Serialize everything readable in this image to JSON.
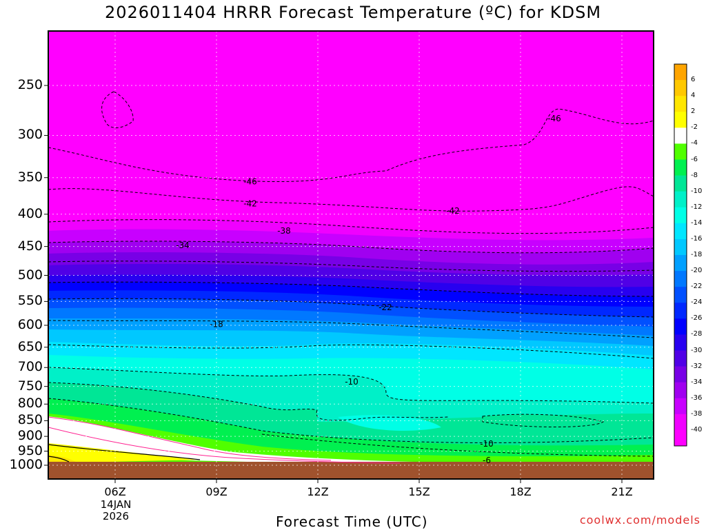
{
  "title": "2026011404 HRRR Forecast Temperature (ºC) for KDSM",
  "credit": "coolwx.com/models",
  "chart_data": {
    "type": "heatmap",
    "title": "2026011404 HRRR Forecast Temperature (ºC) for KDSM",
    "xlabel": "Forecast Time (UTC)",
    "ylabel": "",
    "x_ticks": [
      "06Z",
      "09Z",
      "12Z",
      "15Z",
      "18Z",
      "21Z"
    ],
    "x_date_labels": [
      "14JAN",
      "2026"
    ],
    "y_ticks": [
      "250",
      "300",
      "350",
      "400",
      "450",
      "500",
      "550",
      "600",
      "650",
      "700",
      "750",
      "800",
      "850",
      "900",
      "950",
      "1000"
    ],
    "y_axis": "pressure (hPa), inverted",
    "colorbar": {
      "levels": [
        6,
        4,
        2,
        -2,
        -4,
        -6,
        -8,
        -10,
        -12,
        -14,
        -16,
        -18,
        -20,
        -22,
        -24,
        -26,
        -28,
        -30,
        -32,
        -34,
        -36,
        -38,
        -40
      ],
      "colors": [
        "#ffa500",
        "#ffc800",
        "#ffe600",
        "#ffff00",
        "#ffffff",
        "#50ff00",
        "#00f050",
        "#00e696",
        "#00f0c8",
        "#00ffe6",
        "#00e6ff",
        "#00c8ff",
        "#00a0ff",
        "#0078ff",
        "#0050ff",
        "#0028ff",
        "#0000ff",
        "#2800f0",
        "#5000e6",
        "#7800e6",
        "#a000f0",
        "#c800ff",
        "#f000ff",
        "#ff00ff"
      ]
    },
    "contour_labels": [
      {
        "value": "-46",
        "x_hour": 10.0,
        "p": 355
      },
      {
        "value": "-46",
        "x_hour": 19.0,
        "p": 282
      },
      {
        "value": "-42",
        "x_hour": 10.0,
        "p": 385
      },
      {
        "value": "-42",
        "x_hour": 16.0,
        "p": 395
      },
      {
        "value": "-38",
        "x_hour": 11.0,
        "p": 425
      },
      {
        "value": "-34",
        "x_hour": 8.0,
        "p": 448
      },
      {
        "value": "-22",
        "x_hour": 14.0,
        "p": 562
      },
      {
        "value": "-18",
        "x_hour": 9.0,
        "p": 598
      },
      {
        "value": "-10",
        "x_hour": 13.0,
        "p": 738
      },
      {
        "value": "-10",
        "x_hour": 17.0,
        "p": 925
      },
      {
        "value": "-6",
        "x_hour": 17.0,
        "p": 982
      }
    ]
  }
}
